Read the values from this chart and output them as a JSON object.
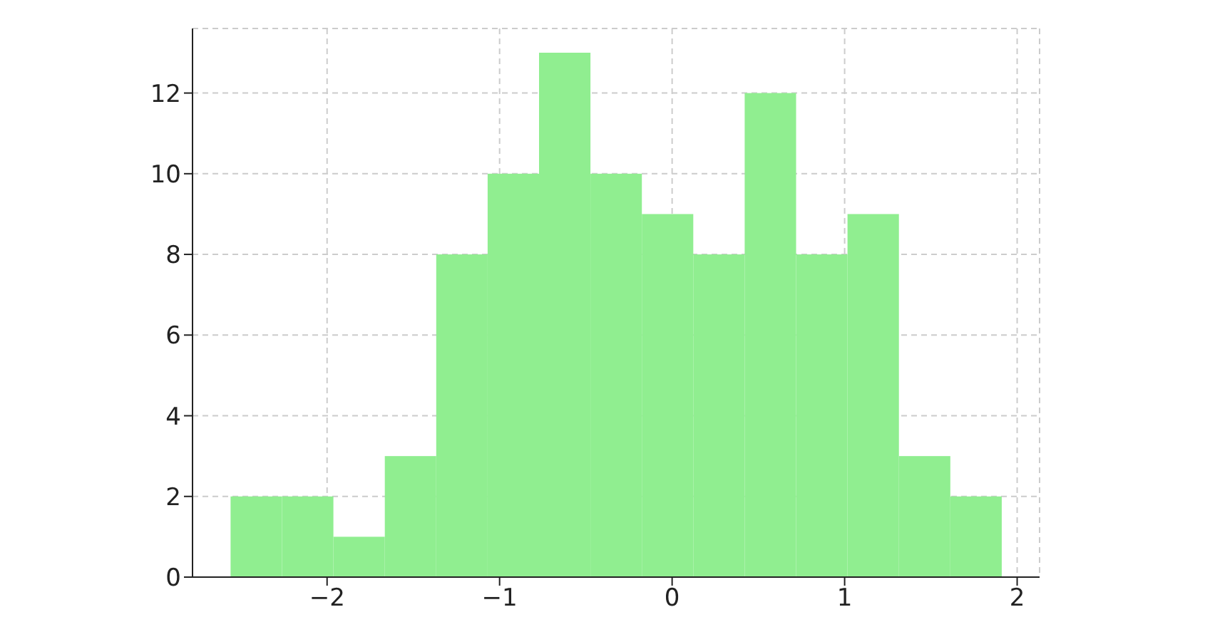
{
  "chart_data": {
    "type": "histogram",
    "color": "#90ee90",
    "bins": [
      -2.56,
      -2.262,
      -1.964,
      -1.666,
      -1.368,
      -1.07,
      -0.772,
      -0.474,
      -0.176,
      0.122,
      0.42,
      0.718,
      1.016,
      1.314,
      1.612,
      1.91
    ],
    "values": [
      2,
      2,
      1,
      3,
      8,
      10,
      13,
      10,
      9,
      8,
      12,
      8,
      9,
      3,
      2
    ],
    "xlim": [
      -2.78,
      2.13
    ],
    "xticks": [
      {
        "value": -2,
        "label": "−2"
      },
      {
        "value": -1,
        "label": "−1"
      },
      0,
      1,
      2
    ],
    "ylim": [
      0,
      13.6
    ],
    "yticks": [
      0,
      2,
      4,
      6,
      8,
      10,
      12
    ],
    "grid": true
  }
}
